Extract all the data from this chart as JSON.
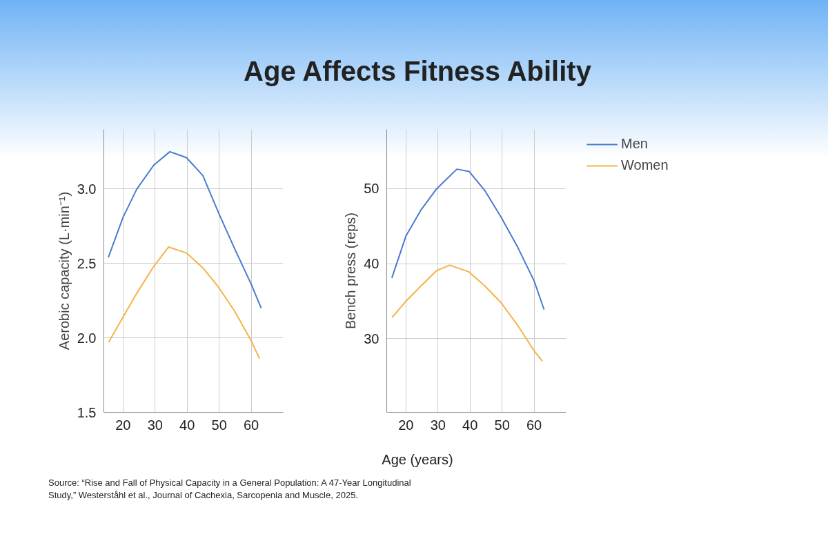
{
  "chart_data": [
    {
      "type": "line",
      "title": "Age Affects Fitness Ability",
      "ylabel": "Aerobic capacity (L·min⁻¹)",
      "annotations": [
        "Source: “Rise and Fall of Physical Capacity in a General Population: A 47-Year Longitudinal Study,” Westerståhl et al., Journal of Cachexia, Sarcopenia and Muscle, 2025."
      ],
      "xlim": [
        14,
        70
      ],
      "xticks": [
        20,
        30,
        40,
        50,
        60
      ],
      "ylim": [
        1.5,
        3.4
      ],
      "yticks": [
        1.5,
        {
          "value": 2,
          "label": "2.0"
        },
        2.5,
        {
          "value": 3,
          "label": "3.0"
        }
      ],
      "grid": true,
      "series": [
        {
          "color": "#4a7bd0",
          "x": [
            15.4,
            20,
            24.3,
            29.6,
            34.6,
            39.8,
            44.9,
            49.8,
            54.8,
            60,
            63.1
          ],
          "values": [
            2.54,
            2.81,
            3.0,
            3.16,
            3.25,
            3.21,
            3.09,
            2.84,
            2.6,
            2.36,
            2.2
          ]
        },
        {
          "color": "#f5b345",
          "x": [
            15.5,
            20,
            24.3,
            29.6,
            34.2,
            39.8,
            44.9,
            49.8,
            54.8,
            60,
            62.6
          ],
          "values": [
            1.97,
            2.14,
            2.3,
            2.48,
            2.61,
            2.57,
            2.47,
            2.34,
            2.18,
            1.98,
            1.86
          ]
        }
      ]
    },
    {
      "type": "line",
      "xlabel": "Age (years)",
      "ylabel": "Bench press (reps)",
      "xlim": [
        14,
        70
      ],
      "xticks": [
        20,
        30,
        40,
        50,
        60
      ],
      "ylim": [
        20.2,
        57.9
      ],
      "yticks": [
        30,
        40,
        50
      ],
      "grid": true,
      "legend": "top right",
      "series": [
        {
          "name": "Men",
          "color": "#4a7bd0",
          "x": [
            15.6,
            20,
            24.6,
            29.6,
            35.9,
            39.7,
            44.7,
            49.7,
            55,
            60,
            63.1
          ],
          "values": [
            38.1,
            43.7,
            47.1,
            50.0,
            52.6,
            52.3,
            49.7,
            46.2,
            42.1,
            37.7,
            33.9
          ]
        },
        {
          "name": "Women",
          "color": "#f5b345",
          "x": [
            15.6,
            20,
            24.6,
            29.6,
            33.7,
            39.7,
            44.7,
            49.7,
            55,
            60,
            62.6
          ],
          "values": [
            32.8,
            35.0,
            37.0,
            39.1,
            39.8,
            38.9,
            37.0,
            34.8,
            31.7,
            28.4,
            27.0
          ]
        }
      ]
    }
  ]
}
